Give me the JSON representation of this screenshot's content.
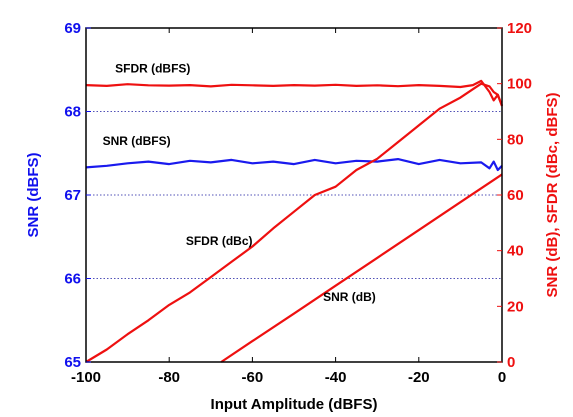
{
  "colors": {
    "left_axis": "#1010ee",
    "right_axis": "#ee1010",
    "grid": "#1a1aa0",
    "frame": "#000000",
    "snr_dbfs_series": "#1a1aee",
    "sfdr_dbfs_series": "#ee1010",
    "sfdr_dbc_series": "#ee1010",
    "snr_db_series": "#ee1010"
  },
  "chart_data": {
    "type": "line",
    "xlabel": "Input Amplitude (dBFS)",
    "ylabel_left": "SNR (dBFS)",
    "ylabel_right": "SNR (dB), SFDR (dBc, dBFS)",
    "xlim": [
      -100,
      0
    ],
    "ylim_left": [
      65,
      69
    ],
    "ylim_right": [
      0,
      120
    ],
    "x_ticks": [
      "-100",
      "-80",
      "-60",
      "-40",
      "-20",
      "0"
    ],
    "y_ticks_left": [
      "65",
      "66",
      "67",
      "68",
      "69"
    ],
    "y_ticks_right": [
      "0",
      "20",
      "40",
      "60",
      "80",
      "100",
      "120"
    ],
    "grid": "horizontal dotted (left axis)",
    "series": [
      {
        "name": "SFDR (dBFS)",
        "axis": "right",
        "x": [
          -100,
          -95,
          -90,
          -85,
          -80,
          -75,
          -70,
          -65,
          -60,
          -55,
          -50,
          -45,
          -40,
          -35,
          -30,
          -25,
          -20,
          -15,
          -10,
          -7,
          -5,
          -3,
          -2,
          -1,
          0
        ],
        "y": [
          99.5,
          99.2,
          99.8,
          99.4,
          99.3,
          99.5,
          99.0,
          99.6,
          99.4,
          99.2,
          99.5,
          99.3,
          99.6,
          99.2,
          99.4,
          99.1,
          99.5,
          99.2,
          98.8,
          99.5,
          101,
          97,
          94,
          96,
          92
        ]
      },
      {
        "name": "SNR (dBFS)",
        "axis": "left",
        "x": [
          -100,
          -95,
          -90,
          -85,
          -80,
          -75,
          -70,
          -65,
          -60,
          -55,
          -50,
          -45,
          -40,
          -35,
          -30,
          -25,
          -20,
          -15,
          -10,
          -5,
          -3,
          -2,
          -1,
          0
        ],
        "y": [
          67.33,
          67.35,
          67.38,
          67.4,
          67.37,
          67.41,
          67.39,
          67.42,
          67.38,
          67.4,
          67.37,
          67.42,
          67.38,
          67.41,
          67.4,
          67.43,
          67.37,
          67.42,
          67.38,
          67.39,
          67.32,
          67.4,
          67.3,
          67.35
        ]
      },
      {
        "name": "SFDR (dBc)",
        "axis": "right",
        "x": [
          -100,
          -95,
          -90,
          -85,
          -80,
          -75,
          -70,
          -65,
          -60,
          -55,
          -50,
          -45,
          -40,
          -35,
          -30,
          -25,
          -20,
          -15,
          -10,
          -7,
          -5,
          -3,
          -2,
          -1,
          0
        ],
        "y": [
          0,
          4.5,
          10,
          15,
          20.5,
          25,
          30.5,
          36,
          41.5,
          48,
          54,
          60,
          63,
          69,
          73,
          79,
          85,
          91,
          95,
          98,
          100,
          99,
          97,
          96,
          92
        ]
      },
      {
        "name": "SNR (dB)",
        "axis": "right",
        "x": [
          -67.5,
          -60,
          -50,
          -40,
          -30,
          -20,
          -10,
          0
        ],
        "y": [
          0,
          7.5,
          17.4,
          27.4,
          37.4,
          47.4,
          57.4,
          67.4
        ]
      }
    ],
    "annotations": [
      {
        "text": "SFDR (dBFS)",
        "x": -93,
        "y_right": 104
      },
      {
        "text": "SNR (dBFS)",
        "x": -96,
        "y_left": 67.6
      },
      {
        "text": "SFDR (dBc)",
        "x": -76,
        "y_right": 42
      },
      {
        "text": "SNR (dB)",
        "x": -43,
        "y_right": 22
      }
    ]
  }
}
